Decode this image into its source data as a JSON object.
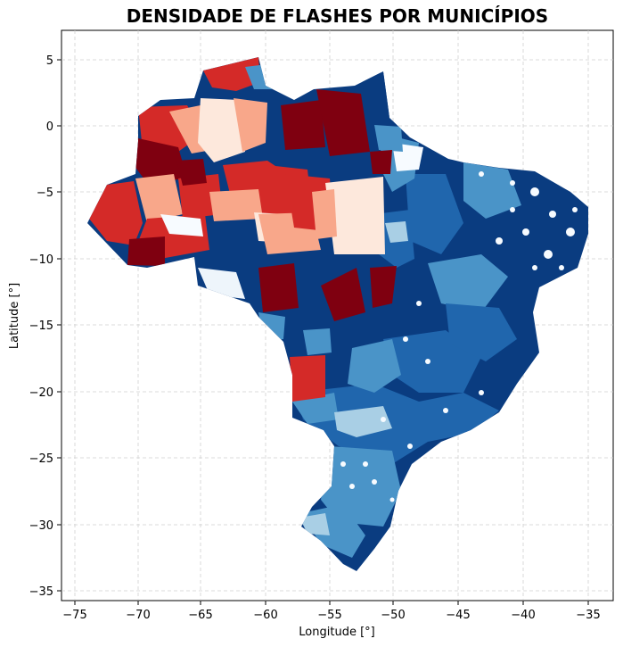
{
  "title": "DENSIDADE DE FLASHES POR MUNICÍPIOS",
  "chart_data": {
    "type": "choropleth-map",
    "title": "DENSIDADE DE FLASHES POR MUNICÍPIOS",
    "xlabel": "Longitude [°]",
    "ylabel": "Latitude [°]",
    "xlim": [
      -76.5,
      -32.7
    ],
    "ylim": [
      -35.9,
      7.2
    ],
    "xticks": [
      -75,
      -70,
      -65,
      -60,
      -55,
      -50,
      -45,
      -40,
      -35
    ],
    "yticks": [
      5,
      0,
      -5,
      -10,
      -15,
      -20,
      -25,
      -30,
      -35
    ],
    "grid": true,
    "colormap": "RdBu (reversed)",
    "colors": {
      "dark_red": "#7f0010",
      "red": "#d42a28",
      "salmon": "#f8a78a",
      "light_pink": "#fde8dc",
      "white": "#f7fbff",
      "light_blue": "#a9cfe5",
      "mid_blue": "#4a94c8",
      "blue": "#2066ad",
      "dark_blue": "#0a3c80"
    }
  }
}
